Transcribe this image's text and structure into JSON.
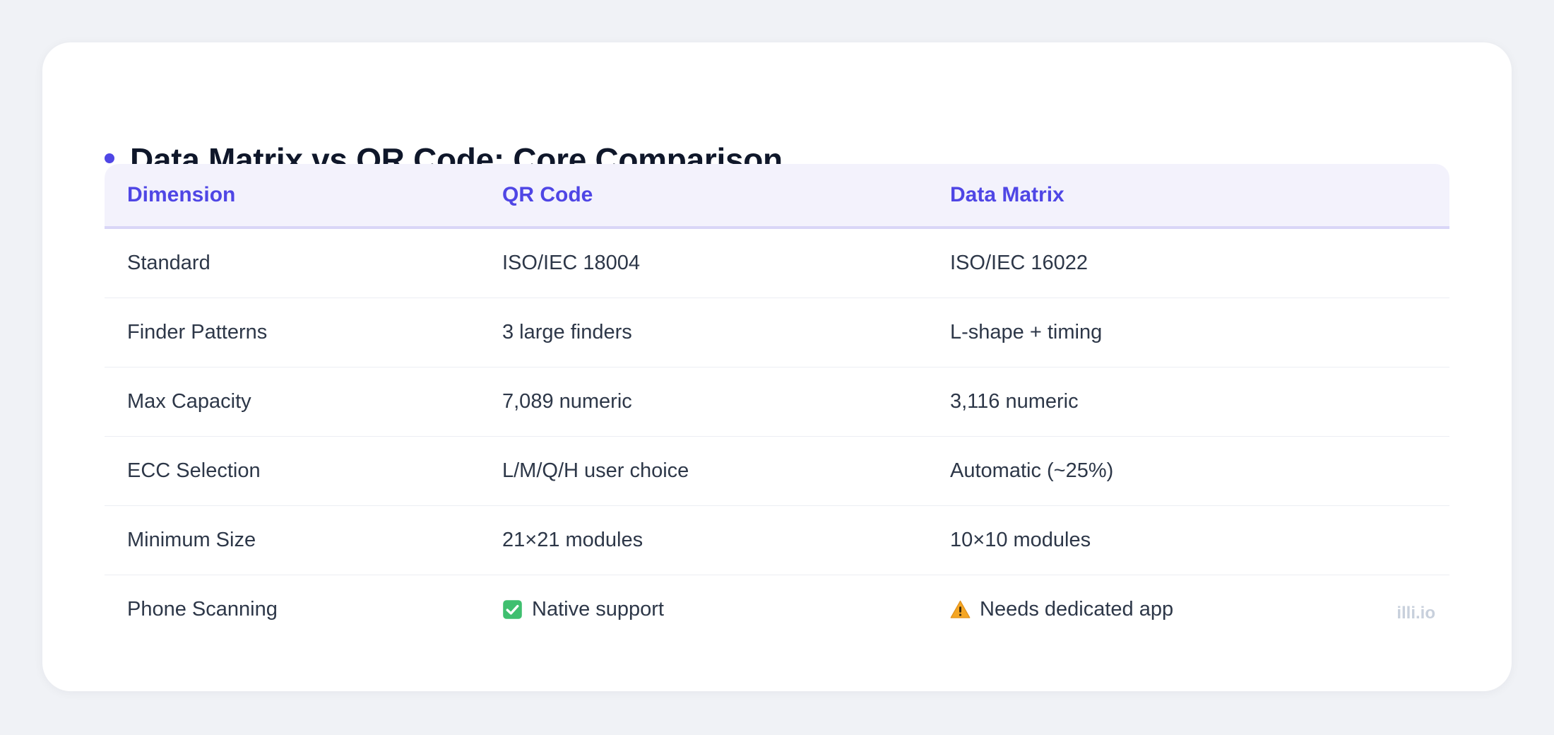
{
  "title": "Data Matrix vs QR Code: Core Comparison",
  "accent_color": "#4f46e5",
  "table": {
    "headers": [
      "Dimension",
      "QR Code",
      "Data Matrix"
    ],
    "rows": [
      {
        "dimension": "Standard",
        "qr": "ISO/IEC 18004",
        "dm": "ISO/IEC 16022"
      },
      {
        "dimension": "Finder Patterns",
        "qr": "3 large finders",
        "dm": "L-shape + timing"
      },
      {
        "dimension": "Max Capacity",
        "qr": "7,089 numeric",
        "dm": "3,116 numeric"
      },
      {
        "dimension": "ECC Selection",
        "qr": "L/M/Q/H user choice",
        "dm": "Automatic (~25%)"
      },
      {
        "dimension": "Minimum Size",
        "qr": "21×21 modules",
        "dm": "10×10 modules"
      },
      {
        "dimension": "Phone Scanning",
        "qr": "Native support",
        "qr_icon": "check-mark-icon",
        "dm": "Needs dedicated app",
        "dm_icon": "warning-icon"
      }
    ]
  },
  "watermark": "illi.io"
}
